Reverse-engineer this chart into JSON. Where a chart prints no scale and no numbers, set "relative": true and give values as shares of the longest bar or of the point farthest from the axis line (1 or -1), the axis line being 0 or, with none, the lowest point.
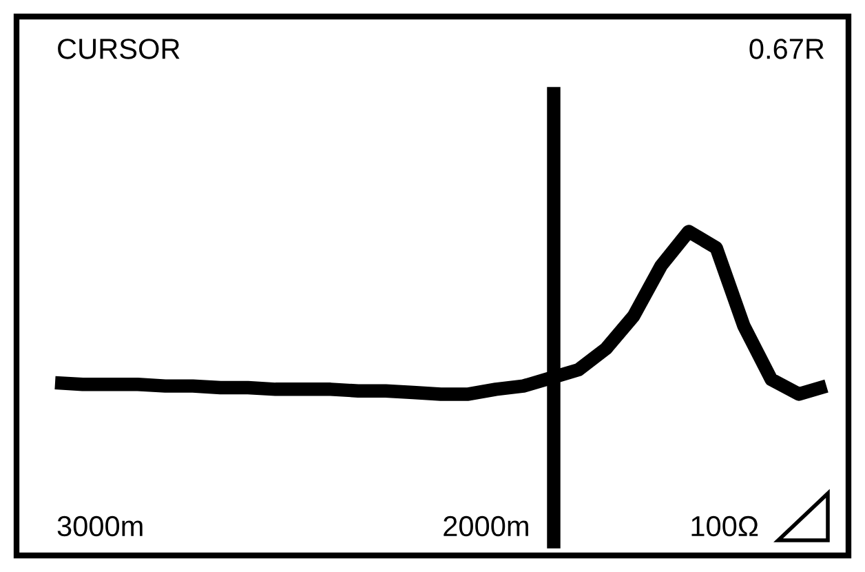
{
  "chart_data": {
    "type": "line",
    "relative": true,
    "color": "#000000",
    "categories": [
      null,
      null,
      null,
      null,
      null,
      null,
      null,
      null,
      null,
      null,
      null,
      null,
      null,
      null,
      null,
      null,
      null,
      null,
      null,
      null,
      null,
      null,
      null,
      null,
      null,
      null,
      null,
      null,
      null
    ],
    "values": [
      0.07,
      0.06,
      0.06,
      0.06,
      0.05,
      0.05,
      0.04,
      0.04,
      0.03,
      0.03,
      0.03,
      0.02,
      0.02,
      0.01,
      0.0,
      0.0,
      0.03,
      0.05,
      0.1,
      0.15,
      0.28,
      0.48,
      0.79,
      1.0,
      0.9,
      0.42,
      0.09,
      0.0,
      0.05
    ],
    "annotations": [
      "CURSOR",
      "0.67R",
      "3000m",
      "2000m",
      "100Ω"
    ],
    "grid": false
  }
}
